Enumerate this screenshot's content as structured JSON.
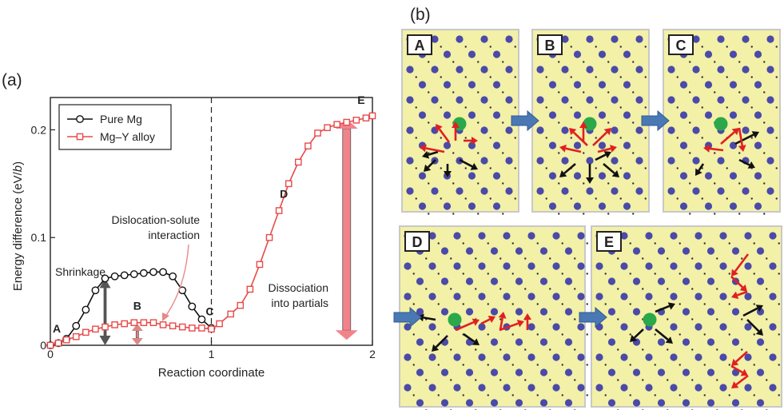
{
  "panel_a_label": "(a)",
  "panel_b_label": "(b)",
  "chart_data": {
    "type": "line",
    "title": "",
    "xlabel": "Reaction coordinate",
    "ylabel_main": "Energy difference (eV/",
    "ylabel_italic": "b",
    "ylabel_end": ")",
    "xlim": [
      0,
      2
    ],
    "ylim": [
      0,
      0.23
    ],
    "xticks": [
      {
        "value": 0,
        "label": "0"
      },
      {
        "value": 1,
        "label": "1"
      },
      {
        "value": 2,
        "label": "2"
      }
    ],
    "yticks": [
      {
        "value": 0,
        "label": "0"
      },
      {
        "value": 0.1,
        "label": "0.1"
      },
      {
        "value": 0.2,
        "label": "0.2"
      }
    ],
    "grid": false,
    "legend_position": "top-left",
    "vline_x": 1,
    "series": [
      {
        "name": "Pure Mg",
        "color": "#111111",
        "marker": "circle",
        "points": [
          [
            0,
            0
          ],
          [
            0.05,
            0.002
          ],
          [
            0.1,
            0.006
          ],
          [
            0.16,
            0.018
          ],
          [
            0.22,
            0.033
          ],
          [
            0.28,
            0.051
          ],
          [
            0.34,
            0.062
          ],
          [
            0.4,
            0.064
          ],
          [
            0.46,
            0.065
          ],
          [
            0.52,
            0.066
          ],
          [
            0.58,
            0.067
          ],
          [
            0.64,
            0.068
          ],
          [
            0.7,
            0.068
          ],
          [
            0.76,
            0.064
          ],
          [
            0.82,
            0.051
          ],
          [
            0.88,
            0.036
          ],
          [
            0.94,
            0.024
          ],
          [
            1.0,
            0.016
          ]
        ]
      },
      {
        "name": "Mg–Y alloy",
        "color": "#e84a4a",
        "marker": "square",
        "points": [
          [
            0,
            0
          ],
          [
            0.05,
            0.002
          ],
          [
            0.1,
            0.005
          ],
          [
            0.16,
            0.008
          ],
          [
            0.22,
            0.012
          ],
          [
            0.28,
            0.015
          ],
          [
            0.34,
            0.017
          ],
          [
            0.4,
            0.019
          ],
          [
            0.46,
            0.02
          ],
          [
            0.52,
            0.021
          ],
          [
            0.58,
            0.021
          ],
          [
            0.64,
            0.021
          ],
          [
            0.7,
            0.019
          ],
          [
            0.76,
            0.018
          ],
          [
            0.82,
            0.017
          ],
          [
            0.88,
            0.016
          ],
          [
            0.94,
            0.016
          ],
          [
            1.0,
            0.015
          ],
          [
            1.05,
            0.02
          ],
          [
            1.12,
            0.029
          ],
          [
            1.18,
            0.037
          ],
          [
            1.24,
            0.052
          ],
          [
            1.3,
            0.075
          ],
          [
            1.36,
            0.1
          ],
          [
            1.42,
            0.125
          ],
          [
            1.48,
            0.15
          ],
          [
            1.54,
            0.17
          ],
          [
            1.6,
            0.185
          ],
          [
            1.66,
            0.197
          ],
          [
            1.72,
            0.202
          ],
          [
            1.78,
            0.205
          ],
          [
            1.84,
            0.207
          ],
          [
            1.9,
            0.209
          ],
          [
            1.96,
            0.211
          ],
          [
            2.0,
            0.213
          ]
        ]
      }
    ],
    "point_labels": [
      {
        "text": "A",
        "x": 0.04,
        "y": 0.012
      },
      {
        "text": "B",
        "x": 0.54,
        "y": 0.033
      },
      {
        "text": "C",
        "x": 0.99,
        "y": 0.028
      },
      {
        "text": "D",
        "x": 1.45,
        "y": 0.137
      },
      {
        "text": "E",
        "x": 1.93,
        "y": 0.224
      }
    ],
    "annotations": {
      "shrinkage": "Shrinkage",
      "interaction_line1": "Dislocation-solute",
      "interaction_line2": "interaction",
      "dissociation_line1": "Dissociation",
      "dissociation_line2": "into partials"
    },
    "shrinkage_arrow": {
      "x": 0.34,
      "y_low": 0.0,
      "y_high": 0.062,
      "color": "#555555"
    },
    "interaction_arrow": {
      "x": 0.54,
      "y_low": 0.0,
      "y_high": 0.02,
      "color": "#d98888"
    },
    "dissociation_arrow": {
      "x": 1.84,
      "y_low": 0.005,
      "y_high": 0.21,
      "color": "#f2838b"
    }
  },
  "panels_b": [
    {
      "label": "A"
    },
    {
      "label": "B"
    },
    {
      "label": "C"
    },
    {
      "label": "D"
    },
    {
      "label": "E"
    }
  ],
  "colors": {
    "panel_bg": "#f3f0a8",
    "panel_border": "#c8c8c8",
    "atom": "#4a4aa8",
    "solute": "#2aa84a",
    "arrow_red": "#e02020",
    "arrow_black": "#111111",
    "flow_arrow": "#4a78b4"
  }
}
